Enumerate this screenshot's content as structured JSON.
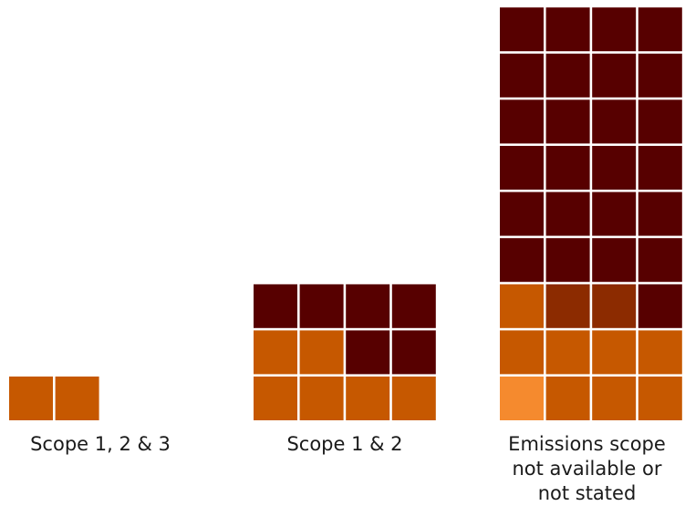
{
  "chart_data": {
    "type": "waffle",
    "title": "",
    "columns_per_group": 4,
    "colors": {
      "dark-maroon": "#570000",
      "burnt-red": "#8c2b00",
      "orange": "#c65800",
      "light-orange": "#f58a2e"
    },
    "categories": [
      {
        "label": "Scope 1, 2 & 3",
        "rows": [
          [
            "orange",
            "orange"
          ]
        ]
      },
      {
        "label": "Scope 1 & 2",
        "rows": [
          [
            "orange",
            "orange",
            "orange",
            "orange"
          ],
          [
            "orange",
            "orange",
            "dark-maroon",
            "dark-maroon"
          ],
          [
            "dark-maroon",
            "dark-maroon",
            "dark-maroon",
            "dark-maroon"
          ]
        ]
      },
      {
        "label": "Emissions scope\nnot available or\nnot stated",
        "rows": [
          [
            "light-orange",
            "orange",
            "orange",
            "orange"
          ],
          [
            "orange",
            "orange",
            "orange",
            "orange"
          ],
          [
            "orange",
            "burnt-red",
            "burnt-red",
            "dark-maroon"
          ],
          [
            "dark-maroon",
            "dark-maroon",
            "dark-maroon",
            "dark-maroon"
          ],
          [
            "dark-maroon",
            "dark-maroon",
            "dark-maroon",
            "dark-maroon"
          ],
          [
            "dark-maroon",
            "dark-maroon",
            "dark-maroon",
            "dark-maroon"
          ],
          [
            "dark-maroon",
            "dark-maroon",
            "dark-maroon",
            "dark-maroon"
          ],
          [
            "dark-maroon",
            "dark-maroon",
            "dark-maroon",
            "dark-maroon"
          ],
          [
            "dark-maroon",
            "dark-maroon",
            "dark-maroon",
            "dark-maroon"
          ]
        ]
      }
    ]
  }
}
